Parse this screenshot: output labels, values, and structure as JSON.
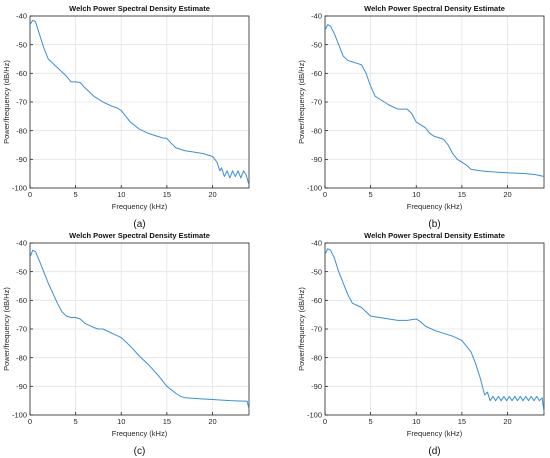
{
  "line_color": "#3a8fd6",
  "grid_color": "#e4e4e4",
  "chart_data": [
    {
      "type": "line",
      "caption": "(a)",
      "title": "Welch Power Spectral Density Estimate",
      "xlabel": "Frequency (kHz)",
      "ylabel": "Power/frequency (dB/Hz)",
      "xlim": [
        0,
        24
      ],
      "ylim": [
        -100,
        -40
      ],
      "xticks": [
        0,
        5,
        10,
        15,
        20
      ],
      "yticks": [
        -40,
        -50,
        -60,
        -70,
        -80,
        -90,
        -100
      ],
      "grid": true,
      "series": [
        {
          "x": [
            0,
            0.3,
            0.6,
            1,
            1.5,
            2,
            3,
            4,
            4.5,
            5,
            5.5,
            6,
            7,
            8,
            9,
            9.5,
            10,
            11,
            12,
            13,
            14,
            14.5,
            15,
            15.5,
            16,
            17,
            18,
            19,
            19.5,
            20,
            20.5,
            20.8,
            21,
            21.3,
            21.6,
            21.9,
            22.2,
            22.5,
            22.8,
            23.1,
            23.4,
            23.7,
            24
          ],
          "y": [
            -43,
            -41.5,
            -42,
            -46,
            -51,
            -55,
            -58,
            -61,
            -63,
            -63,
            -63.2,
            -65,
            -68,
            -70,
            -71.5,
            -72,
            -73,
            -77,
            -79.5,
            -81,
            -82,
            -82.5,
            -82.7,
            -84.5,
            -86,
            -87,
            -87.5,
            -88,
            -88.5,
            -89,
            -91,
            -94,
            -93,
            -96,
            -94,
            -96.5,
            -94,
            -96,
            -94,
            -96.5,
            -94,
            -95.5,
            -99
          ]
        }
      ]
    },
    {
      "type": "line",
      "caption": "(b)",
      "title": "Welch Power Spectral Density Estimate",
      "xlabel": "Frequency (kHz)",
      "ylabel": "Power/frequency (dB/Hz)",
      "xlim": [
        0,
        24
      ],
      "ylim": [
        -100,
        -40
      ],
      "xticks": [
        0,
        5,
        10,
        15,
        20
      ],
      "yticks": [
        -40,
        -50,
        -60,
        -70,
        -80,
        -90,
        -100
      ],
      "grid": true,
      "series": [
        {
          "x": [
            0,
            0.3,
            0.6,
            1,
            1.5,
            2,
            2.5,
            3,
            3.5,
            4,
            4.5,
            5,
            5.5,
            6,
            7,
            8,
            9,
            9.5,
            10,
            11,
            11.5,
            12,
            13,
            13.5,
            14,
            14.5,
            15,
            15.5,
            16,
            17,
            18,
            19,
            20,
            21,
            22,
            23,
            24
          ],
          "y": [
            -45,
            -43,
            -43.5,
            -46,
            -50,
            -54,
            -55.5,
            -56,
            -56.5,
            -57,
            -60,
            -64.5,
            -68,
            -69,
            -71,
            -72.5,
            -72.5,
            -74,
            -77,
            -79,
            -81,
            -82,
            -83,
            -85,
            -88,
            -90,
            -91,
            -92,
            -93.5,
            -94,
            -94.3,
            -94.5,
            -94.7,
            -94.8,
            -95,
            -95.3,
            -96
          ]
        }
      ]
    },
    {
      "type": "line",
      "caption": "(c)",
      "title": "Welch Power Spectral Density Estimate",
      "xlabel": "Frequency (kHz)",
      "ylabel": "Power/frequency (dB/Hz)",
      "xlim": [
        0,
        24
      ],
      "ylim": [
        -100,
        -40
      ],
      "xticks": [
        0,
        5,
        10,
        15,
        20
      ],
      "yticks": [
        -40,
        -50,
        -60,
        -70,
        -80,
        -90,
        -100
      ],
      "grid": true,
      "series": [
        {
          "x": [
            0,
            0.3,
            0.6,
            1,
            1.5,
            2,
            3,
            3.5,
            4,
            4.5,
            5,
            5.5,
            6,
            7,
            7.5,
            8,
            9,
            10,
            11,
            12,
            13,
            14,
            15,
            16,
            16.5,
            17,
            18,
            19,
            20,
            21,
            22,
            23,
            23.8,
            24
          ],
          "y": [
            -45,
            -42.5,
            -43,
            -46,
            -50,
            -54,
            -61,
            -64,
            -65.5,
            -66,
            -66,
            -66.5,
            -68,
            -69.5,
            -70,
            -70,
            -71.5,
            -73,
            -76,
            -79.5,
            -82.5,
            -86,
            -90,
            -92.5,
            -93.5,
            -94,
            -94.2,
            -94.4,
            -94.6,
            -94.8,
            -95,
            -95.1,
            -95.2,
            -98
          ]
        }
      ]
    },
    {
      "type": "line",
      "caption": "(d)",
      "title": "Welch Power Spectral Density Estimate",
      "xlabel": "Frequency (kHz)",
      "ylabel": "Power/frequency (dB/Hz)",
      "xlim": [
        0,
        24
      ],
      "ylim": [
        -100,
        -40
      ],
      "xticks": [
        0,
        5,
        10,
        15,
        20
      ],
      "yticks": [
        -40,
        -50,
        -60,
        -70,
        -80,
        -90,
        -100
      ],
      "grid": true,
      "series": [
        {
          "x": [
            0,
            0.3,
            0.6,
            1,
            1.5,
            2,
            2.5,
            3,
            4,
            5,
            6,
            7,
            8,
            9,
            10,
            10.5,
            11,
            12,
            13,
            14,
            15,
            15.5,
            16,
            16.5,
            17,
            17.5,
            17.8,
            18.1,
            18.4,
            18.7,
            19,
            19.3,
            19.6,
            19.9,
            20.2,
            20.5,
            20.8,
            21.1,
            21.4,
            21.7,
            22,
            22.3,
            22.6,
            22.9,
            23.2,
            23.5,
            23.8,
            24
          ],
          "y": [
            -44,
            -42,
            -42.5,
            -45,
            -50,
            -54,
            -58,
            -61,
            -62.5,
            -65.5,
            -66,
            -66.5,
            -67,
            -67,
            -66.5,
            -67.5,
            -69,
            -70.5,
            -71.5,
            -72.5,
            -74,
            -76,
            -78,
            -82,
            -87,
            -93,
            -92,
            -95,
            -93.5,
            -95,
            -93.5,
            -95,
            -93.5,
            -95,
            -93.5,
            -95,
            -93.5,
            -95,
            -93.5,
            -95,
            -93.5,
            -95,
            -93.5,
            -95,
            -93.5,
            -95,
            -94,
            -99
          ]
        }
      ]
    }
  ]
}
